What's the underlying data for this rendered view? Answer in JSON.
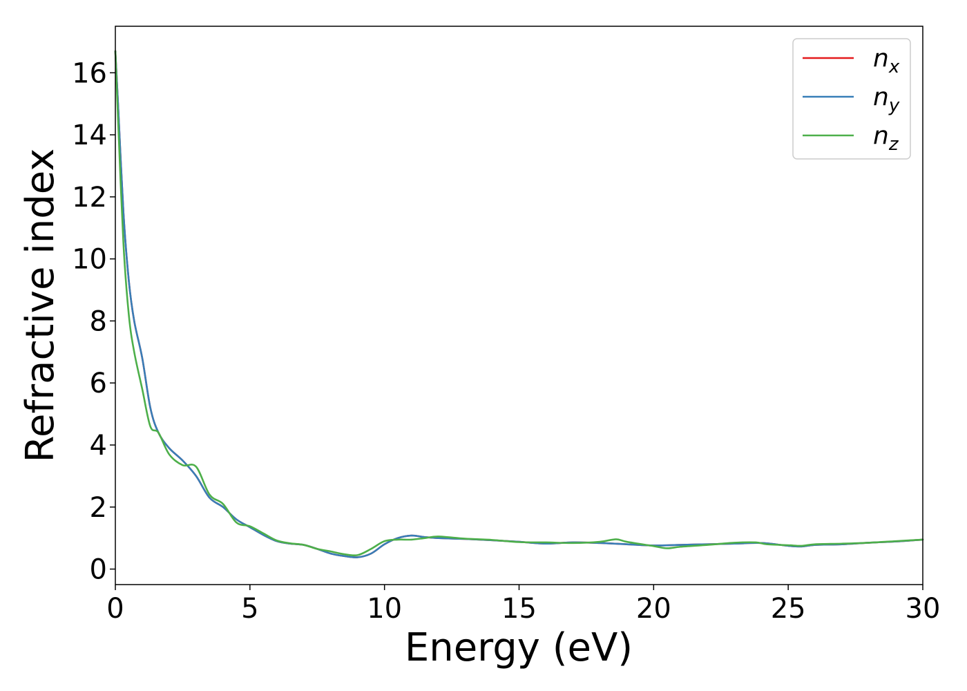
{
  "chart_data": {
    "type": "line",
    "title": "",
    "xlabel": "Energy (eV)",
    "ylabel": "Refractive index",
    "xlim": [
      0,
      30
    ],
    "ylim": [
      -0.5,
      17.5
    ],
    "xticks": [
      0,
      5,
      10,
      15,
      20,
      25,
      30
    ],
    "yticks": [
      0,
      2,
      4,
      6,
      8,
      10,
      12,
      14,
      16
    ],
    "grid": false,
    "legend": {
      "position": "top-right"
    },
    "series": [
      {
        "name": "x",
        "name_base": "n",
        "name_sub": "x",
        "color": "#e41a1c",
        "x": [
          0,
          0.1,
          0.3,
          0.5,
          0.7,
          1.0,
          1.3,
          1.6,
          2.0,
          2.5,
          3.0,
          3.5,
          4.0,
          4.5,
          5.0,
          5.5,
          6.0,
          6.5,
          7.0,
          7.5,
          8.0,
          8.5,
          9.0,
          9.5,
          10.0,
          10.5,
          11.0,
          11.5,
          12.0,
          13.0,
          14.0,
          15.0,
          16.0,
          17.0,
          18.0,
          19.0,
          20.0,
          21.0,
          22.0,
          23.0,
          24.0,
          25.0,
          25.5,
          26.0,
          27.0,
          28.0,
          29.0,
          30.0
        ],
        "y": [
          16.7,
          15.0,
          11.5,
          9.3,
          8.0,
          6.8,
          5.2,
          4.4,
          3.9,
          3.5,
          3.0,
          2.3,
          2.0,
          1.6,
          1.35,
          1.1,
          0.9,
          0.82,
          0.78,
          0.65,
          0.5,
          0.42,
          0.38,
          0.5,
          0.8,
          1.0,
          1.08,
          1.03,
          1.0,
          0.97,
          0.93,
          0.88,
          0.82,
          0.86,
          0.84,
          0.8,
          0.76,
          0.78,
          0.8,
          0.82,
          0.84,
          0.75,
          0.73,
          0.78,
          0.8,
          0.85,
          0.89,
          0.95
        ]
      },
      {
        "name": "y",
        "name_base": "n",
        "name_sub": "y",
        "color": "#377eb8",
        "x": [
          0,
          0.1,
          0.3,
          0.5,
          0.7,
          1.0,
          1.3,
          1.6,
          2.0,
          2.5,
          3.0,
          3.5,
          4.0,
          4.5,
          5.0,
          5.5,
          6.0,
          6.5,
          7.0,
          7.5,
          8.0,
          8.5,
          9.0,
          9.5,
          10.0,
          10.5,
          11.0,
          11.5,
          12.0,
          13.0,
          14.0,
          15.0,
          16.0,
          17.0,
          18.0,
          19.0,
          20.0,
          21.0,
          22.0,
          23.0,
          24.0,
          25.0,
          25.5,
          26.0,
          27.0,
          28.0,
          29.0,
          30.0
        ],
        "y": [
          16.7,
          15.0,
          11.5,
          9.3,
          8.0,
          6.8,
          5.2,
          4.4,
          3.9,
          3.5,
          3.0,
          2.3,
          2.0,
          1.6,
          1.35,
          1.1,
          0.9,
          0.82,
          0.78,
          0.65,
          0.5,
          0.42,
          0.38,
          0.5,
          0.8,
          1.0,
          1.08,
          1.03,
          1.0,
          0.97,
          0.93,
          0.88,
          0.82,
          0.86,
          0.84,
          0.8,
          0.76,
          0.78,
          0.8,
          0.82,
          0.84,
          0.75,
          0.73,
          0.78,
          0.8,
          0.85,
          0.89,
          0.95
        ]
      },
      {
        "name": "z",
        "name_base": "n",
        "name_sub": "z",
        "color": "#4daf4a",
        "x": [
          0,
          0.1,
          0.3,
          0.5,
          0.7,
          1.0,
          1.3,
          1.6,
          2.0,
          2.5,
          3.0,
          3.5,
          4.0,
          4.5,
          5.0,
          5.5,
          6.0,
          6.5,
          7.0,
          7.5,
          8.0,
          8.5,
          9.0,
          9.5,
          10.0,
          10.5,
          11.0,
          11.5,
          12.0,
          13.0,
          14.0,
          15.0,
          16.0,
          17.0,
          18.0,
          18.6,
          19.0,
          20.0,
          20.5,
          21.0,
          22.0,
          23.0,
          23.8,
          24.2,
          25.0,
          25.5,
          26.0,
          27.0,
          28.0,
          29.0,
          30.0
        ],
        "y": [
          16.7,
          14.5,
          10.5,
          8.2,
          7.0,
          5.8,
          4.6,
          4.4,
          3.7,
          3.35,
          3.3,
          2.4,
          2.1,
          1.5,
          1.38,
          1.15,
          0.92,
          0.83,
          0.78,
          0.65,
          0.57,
          0.48,
          0.45,
          0.65,
          0.9,
          0.95,
          0.95,
          1.0,
          1.05,
          0.98,
          0.94,
          0.87,
          0.86,
          0.84,
          0.88,
          0.96,
          0.88,
          0.74,
          0.67,
          0.72,
          0.78,
          0.85,
          0.86,
          0.8,
          0.77,
          0.75,
          0.8,
          0.82,
          0.85,
          0.9,
          0.95
        ]
      }
    ]
  }
}
